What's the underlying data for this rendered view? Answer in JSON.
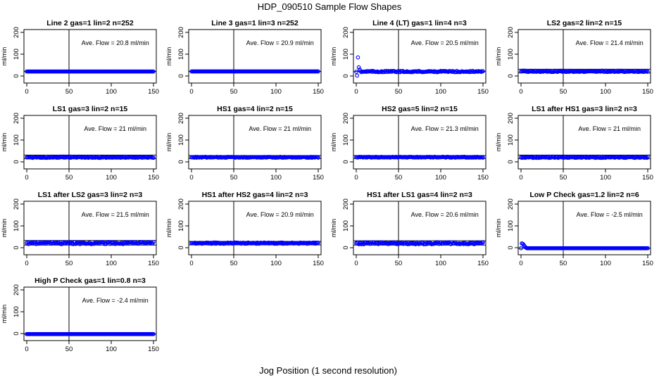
{
  "figure": {
    "title": "HDP_090510  Sample Flow Shapes",
    "xlabel": "Jog Position (1 second resolution)"
  },
  "chart_data": [
    {
      "type": "scatter",
      "title": "Line 2 gas=1 lin=2 n=252",
      "ylabel": "ml/min",
      "annotation": "Ave. Flow =  20.8  ml/min",
      "xlim": [
        0,
        150
      ],
      "ylim": [
        0,
        200
      ],
      "x_ticks": [
        0,
        50,
        100,
        150
      ],
      "y_ticks": [
        0,
        100,
        200
      ],
      "vline_x": 50,
      "hlines": [
        20.8
      ],
      "series": [
        {
          "x_range": [
            0,
            150
          ],
          "pattern": "flat",
          "level": 20.8,
          "noise": 0
        }
      ]
    },
    {
      "type": "scatter",
      "title": "Line 3 gas=1 lin=3 n=252",
      "ylabel": "ml/min",
      "annotation": "Ave. Flow =  20.9  ml/min",
      "xlim": [
        0,
        150
      ],
      "ylim": [
        0,
        200
      ],
      "x_ticks": [
        0,
        50,
        100,
        150
      ],
      "y_ticks": [
        0,
        100,
        200
      ],
      "vline_x": 50,
      "hlines": [
        20.9
      ],
      "series": [
        {
          "x_range": [
            0,
            150
          ],
          "pattern": "flat",
          "level": 20.9,
          "noise": 0
        }
      ]
    },
    {
      "type": "scatter",
      "title": "Line 4 (LT) gas=1 lin=4 n=3",
      "ylabel": "ml/min",
      "annotation": "Ave. Flow =  20.5  ml/min",
      "xlim": [
        0,
        150
      ],
      "ylim": [
        0,
        200
      ],
      "x_ticks": [
        0,
        50,
        100,
        150
      ],
      "y_ticks": [
        0,
        100,
        200
      ],
      "vline_x": 50,
      "hlines": [
        20.5
      ],
      "series": [
        {
          "x_range": [
            0,
            150
          ],
          "pattern": "startup",
          "level": 20.5,
          "noise": 3,
          "start_points": [
            [
              1,
              2
            ],
            [
              2,
              85
            ],
            [
              3,
              40
            ],
            [
              4,
              30
            ],
            [
              5,
              22
            ]
          ]
        }
      ]
    },
    {
      "type": "scatter",
      "title": "LS2 gas=2 lin=2 n=15",
      "ylabel": "ml/min",
      "annotation": "Ave. Flow =  21.4  ml/min",
      "xlim": [
        0,
        150
      ],
      "ylim": [
        0,
        200
      ],
      "x_ticks": [
        0,
        50,
        100,
        150
      ],
      "y_ticks": [
        0,
        100,
        200
      ],
      "vline_x": 50,
      "hlines": [
        14,
        31
      ],
      "series": [
        {
          "x_range": [
            0,
            150
          ],
          "pattern": "noisy",
          "level": 21.4,
          "noise": 3
        }
      ]
    },
    {
      "type": "scatter",
      "title": "LS1 gas=3 lin=2 n=15",
      "ylabel": "ml/min",
      "annotation": "Ave. Flow =  21  ml/min",
      "xlim": [
        0,
        150
      ],
      "ylim": [
        0,
        200
      ],
      "x_ticks": [
        0,
        50,
        100,
        150
      ],
      "y_ticks": [
        0,
        100,
        200
      ],
      "vline_x": 50,
      "hlines": [
        14,
        31
      ],
      "series": [
        {
          "x_range": [
            0,
            150
          ],
          "pattern": "noisy",
          "level": 21,
          "noise": 3
        }
      ]
    },
    {
      "type": "scatter",
      "title": "HS1 gas=4 lin=2 n=15",
      "ylabel": "ml/min",
      "annotation": "Ave. Flow =  21  ml/min",
      "xlim": [
        0,
        150
      ],
      "ylim": [
        0,
        200
      ],
      "x_ticks": [
        0,
        50,
        100,
        150
      ],
      "y_ticks": [
        0,
        100,
        200
      ],
      "vline_x": 50,
      "hlines": [
        15,
        29
      ],
      "series": [
        {
          "x_range": [
            0,
            150
          ],
          "pattern": "noisy",
          "level": 21,
          "noise": 2
        }
      ]
    },
    {
      "type": "scatter",
      "title": "HS2 gas=5 lin=2 n=15",
      "ylabel": "ml/min",
      "annotation": "Ave. Flow =  21.3  ml/min",
      "xlim": [
        0,
        150
      ],
      "ylim": [
        0,
        200
      ],
      "x_ticks": [
        0,
        50,
        100,
        150
      ],
      "y_ticks": [
        0,
        100,
        200
      ],
      "vline_x": 50,
      "hlines": [
        15,
        29
      ],
      "series": [
        {
          "x_range": [
            0,
            150
          ],
          "pattern": "noisy",
          "level": 21.3,
          "noise": 2
        }
      ]
    },
    {
      "type": "scatter",
      "title": "LS1 after HS1 gas=3 lin=2 n=3",
      "ylabel": "ml/min",
      "annotation": "Ave. Flow =  21  ml/min",
      "xlim": [
        0,
        150
      ],
      "ylim": [
        0,
        200
      ],
      "x_ticks": [
        0,
        50,
        100,
        150
      ],
      "y_ticks": [
        0,
        100,
        200
      ],
      "vline_x": 50,
      "hlines": [
        14,
        31
      ],
      "series": [
        {
          "x_range": [
            0,
            150
          ],
          "pattern": "noisy",
          "level": 21,
          "noise": 3
        }
      ]
    },
    {
      "type": "scatter",
      "title": "LS1 after LS2 gas=3 lin=2 n=3",
      "ylabel": "ml/min",
      "annotation": "Ave. Flow =  21.5  ml/min",
      "xlim": [
        0,
        150
      ],
      "ylim": [
        0,
        200
      ],
      "x_ticks": [
        0,
        50,
        100,
        150
      ],
      "y_ticks": [
        0,
        100,
        200
      ],
      "vline_x": 50,
      "hlines": [
        12,
        33
      ],
      "series": [
        {
          "x_range": [
            0,
            150
          ],
          "pattern": "noisy",
          "level": 21.5,
          "noise": 5
        }
      ]
    },
    {
      "type": "scatter",
      "title": "HS1 after HS2 gas=4 lin=2 n=3",
      "ylabel": "ml/min",
      "annotation": "Ave. Flow =  20.9  ml/min",
      "xlim": [
        0,
        150
      ],
      "ylim": [
        0,
        200
      ],
      "x_ticks": [
        0,
        50,
        100,
        150
      ],
      "y_ticks": [
        0,
        100,
        200
      ],
      "vline_x": 50,
      "hlines": [
        13,
        29
      ],
      "series": [
        {
          "x_range": [
            0,
            150
          ],
          "pattern": "noisy",
          "level": 20.9,
          "noise": 3
        }
      ]
    },
    {
      "type": "scatter",
      "title": "HS1 after LS1 gas=4 lin=2 n=3",
      "ylabel": "ml/min",
      "annotation": "Ave. Flow =  20.6  ml/min",
      "xlim": [
        0,
        150
      ],
      "ylim": [
        0,
        200
      ],
      "x_ticks": [
        0,
        50,
        100,
        150
      ],
      "y_ticks": [
        0,
        100,
        200
      ],
      "vline_x": 50,
      "hlines": [
        12,
        32
      ],
      "series": [
        {
          "x_range": [
            0,
            150
          ],
          "pattern": "noisy",
          "level": 20.6,
          "noise": 5
        }
      ]
    },
    {
      "type": "scatter",
      "title": "Low P Check gas=1.2 lin=2 n=6",
      "ylabel": "ml/min",
      "annotation": "Ave. Flow =  -2.5  ml/min",
      "xlim": [
        0,
        150
      ],
      "ylim": [
        0,
        200
      ],
      "x_ticks": [
        0,
        50,
        100,
        150
      ],
      "y_ticks": [
        0,
        100,
        200
      ],
      "vline_x": 50,
      "hlines": [
        -2.5
      ],
      "series": [
        {
          "x_range": [
            0,
            150
          ],
          "pattern": "startup",
          "level": -2.5,
          "noise": 0,
          "start_points": [
            [
              1,
              20
            ],
            [
              2,
              18
            ],
            [
              3,
              14
            ],
            [
              4,
              8
            ],
            [
              5,
              3
            ],
            [
              6,
              0
            ]
          ]
        }
      ]
    },
    {
      "type": "scatter",
      "title": "High P Check gas=1 lin=0.8 n=3",
      "ylabel": "ml/min",
      "annotation": "Ave. Flow =  -2.4  ml/min",
      "xlim": [
        0,
        150
      ],
      "ylim": [
        0,
        200
      ],
      "x_ticks": [
        0,
        50,
        100,
        150
      ],
      "y_ticks": [
        0,
        100,
        200
      ],
      "vline_x": 50,
      "hlines": [
        -2.4
      ],
      "series": [
        {
          "x_range": [
            0,
            150
          ],
          "pattern": "flat",
          "level": -2.4,
          "noise": 0
        }
      ]
    }
  ],
  "style": {
    "point_color": "#0000ff",
    "line_color": "#000000"
  }
}
